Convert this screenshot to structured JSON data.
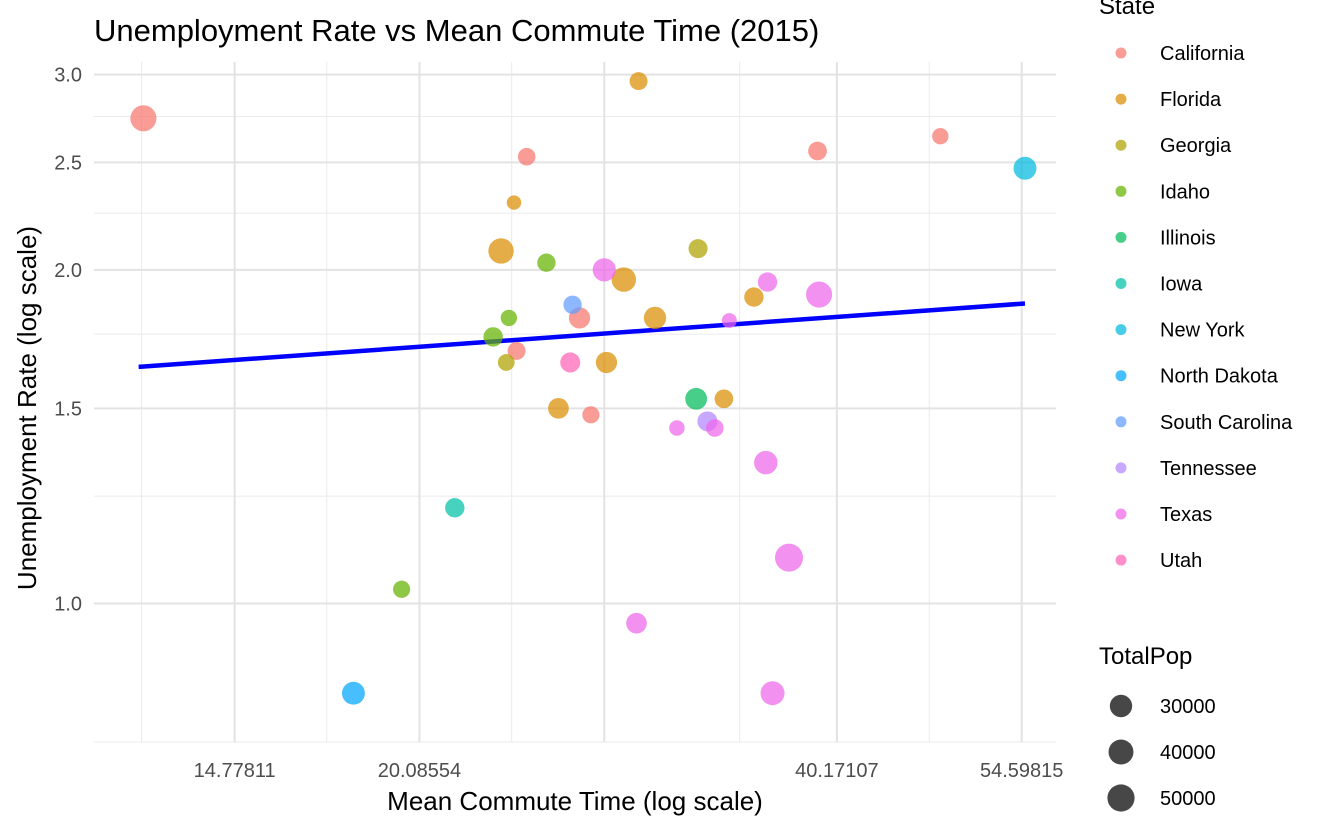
{
  "chart_data": {
    "type": "scatter",
    "title": "Unemployment Rate vs Mean Commute Time (2015)",
    "xlabel": "Mean Commute Time (log scale)",
    "ylabel": "Unemployment Rate (log scale)",
    "x_scale": "log",
    "y_scale": "log",
    "xlim": [
      11.7,
      57.8
    ],
    "ylim": [
      0.75,
      3.08
    ],
    "x_ticks": [
      {
        "value": 14.77811,
        "label": "14.77811"
      },
      {
        "value": 20.08554,
        "label": "20.08554"
      },
      {
        "value": 40.17107,
        "label": "40.17107"
      },
      {
        "value": 54.59815,
        "label": "54.59815"
      }
    ],
    "x_grid_major": [
      14.77811,
      20.08554,
      27.29908,
      40.17107,
      54.59815
    ],
    "x_grid_minor": [
      12.66,
      17.22,
      23.41,
      34.18,
      46.83
    ],
    "y_ticks": [
      {
        "value": 1.0,
        "label": "1.0"
      },
      {
        "value": 1.5,
        "label": "1.5"
      },
      {
        "value": 2.0,
        "label": "2.0"
      },
      {
        "value": 2.5,
        "label": "2.5"
      },
      {
        "value": 3.0,
        "label": "3.0"
      }
    ],
    "y_grid_minor": [
      0.75,
      1.25,
      1.75,
      2.25,
      2.75
    ],
    "grid": true,
    "trend_line": {
      "color": "#0000ff",
      "x": [
        12.6,
        54.9
      ],
      "y": [
        1.635,
        1.865
      ]
    },
    "legend_position": "right",
    "color_legend": {
      "title": "State",
      "entries": [
        {
          "label": "California",
          "color": "#F8766D"
        },
        {
          "label": "Florida",
          "color": "#DB8E00"
        },
        {
          "label": "Georgia",
          "color": "#AEA200"
        },
        {
          "label": "Idaho",
          "color": "#64B200"
        },
        {
          "label": "Illinois",
          "color": "#00BD5C"
        },
        {
          "label": "Iowa",
          "color": "#00C1A7"
        },
        {
          "label": "New York",
          "color": "#00BADE"
        },
        {
          "label": "North Dakota",
          "color": "#00A6FF"
        },
        {
          "label": "South Carolina",
          "color": "#619CFF"
        },
        {
          "label": "Tennessee",
          "color": "#B385FF"
        },
        {
          "label": "Texas",
          "color": "#EF67EB"
        },
        {
          "label": "Utah",
          "color": "#FF63B6"
        }
      ]
    },
    "size_legend": {
      "title": "TotalPop",
      "entries": [
        {
          "label": "30000",
          "value": 30000
        },
        {
          "label": "40000",
          "value": 40000
        },
        {
          "label": "50000",
          "value": 50000
        }
      ]
    },
    "series": [
      {
        "name": "California",
        "color": "#F8766D",
        "points": [
          {
            "x": 12.7,
            "y": 2.74,
            "size": 45000
          },
          {
            "x": 24.0,
            "y": 2.53,
            "size": 15000
          },
          {
            "x": 38.9,
            "y": 2.56,
            "size": 18000
          },
          {
            "x": 47.7,
            "y": 2.64,
            "size": 12000
          },
          {
            "x": 26.2,
            "y": 1.81,
            "size": 26000
          },
          {
            "x": 23.6,
            "y": 1.69,
            "size": 16000
          },
          {
            "x": 26.7,
            "y": 1.48,
            "size": 14000
          }
        ]
      },
      {
        "name": "Florida",
        "color": "#DB8E00",
        "points": [
          {
            "x": 28.9,
            "y": 2.96,
            "size": 16000
          },
          {
            "x": 23.5,
            "y": 2.3,
            "size": 8000
          },
          {
            "x": 23.0,
            "y": 2.08,
            "size": 42000
          },
          {
            "x": 28.2,
            "y": 1.96,
            "size": 38000
          },
          {
            "x": 29.7,
            "y": 1.81,
            "size": 30000
          },
          {
            "x": 35.0,
            "y": 1.89,
            "size": 20000
          },
          {
            "x": 27.4,
            "y": 1.65,
            "size": 26000
          },
          {
            "x": 25.3,
            "y": 1.5,
            "size": 24000
          },
          {
            "x": 33.3,
            "y": 1.53,
            "size": 18000
          }
        ]
      },
      {
        "name": "Georgia",
        "color": "#AEA200",
        "points": [
          {
            "x": 31.9,
            "y": 2.09,
            "size": 19000
          },
          {
            "x": 23.2,
            "y": 1.65,
            "size": 13000
          }
        ]
      },
      {
        "name": "Idaho",
        "color": "#64B200",
        "points": [
          {
            "x": 24.8,
            "y": 2.03,
            "size": 17000
          },
          {
            "x": 23.3,
            "y": 1.81,
            "size": 12000
          },
          {
            "x": 22.7,
            "y": 1.74,
            "size": 20000
          },
          {
            "x": 19.5,
            "y": 1.03,
            "size": 14000
          }
        ]
      },
      {
        "name": "Illinois",
        "color": "#00BD5C",
        "points": [
          {
            "x": 31.8,
            "y": 1.53,
            "size": 28000
          }
        ]
      },
      {
        "name": "Iowa",
        "color": "#00C1A7",
        "points": [
          {
            "x": 21.3,
            "y": 1.22,
            "size": 20000
          }
        ]
      },
      {
        "name": "New York",
        "color": "#00BADE",
        "points": [
          {
            "x": 54.9,
            "y": 2.47,
            "size": 32000
          }
        ]
      },
      {
        "name": "North Dakota",
        "color": "#00A6FF",
        "points": [
          {
            "x": 18.0,
            "y": 0.83,
            "size": 32000
          }
        ]
      },
      {
        "name": "South Carolina",
        "color": "#619CFF",
        "points": [
          {
            "x": 25.9,
            "y": 1.86,
            "size": 17000
          }
        ]
      },
      {
        "name": "Tennessee",
        "color": "#B385FF",
        "points": [
          {
            "x": 32.4,
            "y": 1.46,
            "size": 22000
          }
        ]
      },
      {
        "name": "Texas",
        "color": "#EF67EB",
        "points": [
          {
            "x": 27.3,
            "y": 2.0,
            "size": 33000
          },
          {
            "x": 35.8,
            "y": 1.95,
            "size": 20000
          },
          {
            "x": 39.0,
            "y": 1.9,
            "size": 45000
          },
          {
            "x": 33.6,
            "y": 1.8,
            "size": 9000
          },
          {
            "x": 30.8,
            "y": 1.44,
            "size": 10000
          },
          {
            "x": 32.8,
            "y": 1.44,
            "size": 15000
          },
          {
            "x": 35.7,
            "y": 1.34,
            "size": 34000
          },
          {
            "x": 37.1,
            "y": 1.1,
            "size": 54000
          },
          {
            "x": 28.8,
            "y": 0.96,
            "size": 24000
          },
          {
            "x": 36.1,
            "y": 0.83,
            "size": 36000
          }
        ]
      },
      {
        "name": "Utah",
        "color": "#FF63B6",
        "points": [
          {
            "x": 25.8,
            "y": 1.65,
            "size": 22000
          }
        ]
      }
    ]
  }
}
